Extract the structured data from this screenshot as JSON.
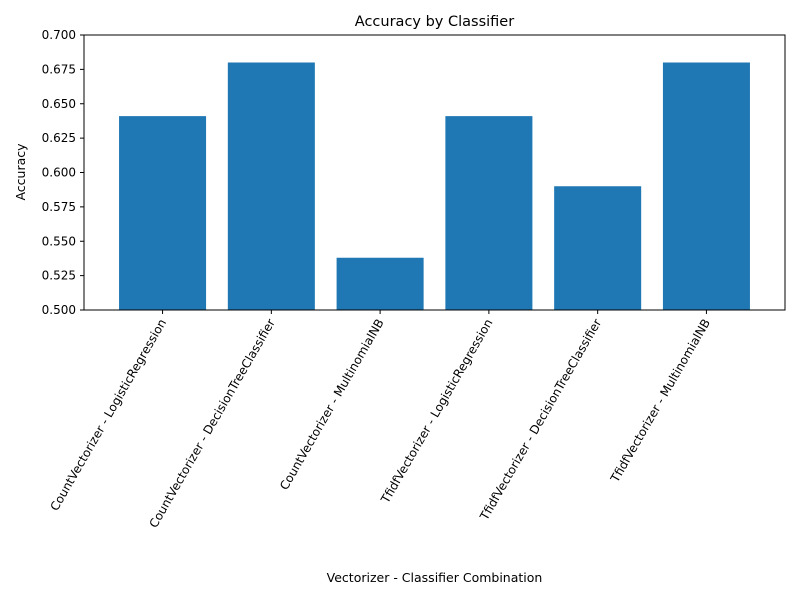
{
  "chart_data": {
    "type": "bar",
    "title": "Accuracy by Classifier",
    "xlabel": "Vectorizer - Classifier Combination",
    "ylabel": "Accuracy",
    "categories": [
      "CountVectorizer - LogisticRegression",
      "CountVectorizer - DecisionTreeClassifier",
      "CountVectorizer - MultinomialNB",
      "TfidfVectorizer - LogisticRegression",
      "TfidfVectorizer - DecisionTreeClassifier",
      "TfidfVectorizer - MultinomialNB"
    ],
    "values": [
      0.641,
      0.68,
      0.538,
      0.641,
      0.59,
      0.68
    ],
    "ylim": [
      0.5,
      0.7
    ],
    "yticks": [
      "0.500",
      "0.525",
      "0.550",
      "0.575",
      "0.600",
      "0.625",
      "0.650",
      "0.675",
      "0.700"
    ],
    "bar_color": "#1f77b4",
    "grid": false,
    "legend": "none"
  }
}
